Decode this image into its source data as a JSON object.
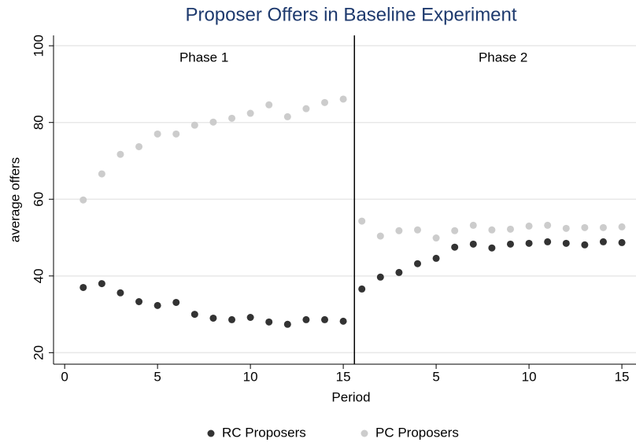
{
  "chart_data": {
    "type": "scatter",
    "title": "Proposer Offers in Baseline Experiment",
    "x_label": "Period",
    "y_label": "average offers",
    "annotations": [
      "Phase 1",
      "Phase 2"
    ],
    "divider": 15.6,
    "x": [
      1,
      2,
      3,
      4,
      5,
      6,
      7,
      8,
      9,
      10,
      11,
      12,
      13,
      14,
      15,
      16,
      17,
      18,
      19,
      20,
      21,
      22,
      23,
      24,
      25,
      26,
      27,
      28,
      29,
      30
    ],
    "series": [
      {
        "name": "RC Proposers",
        "color": "#333333",
        "values": [
          37.0,
          38.0,
          35.6,
          33.3,
          32.3,
          33.1,
          30.0,
          29.0,
          28.6,
          29.2,
          28.0,
          27.4,
          28.6,
          28.6,
          28.2,
          36.6,
          39.7,
          40.9,
          43.2,
          44.6,
          47.5,
          48.3,
          47.3,
          48.3,
          48.5,
          48.9,
          48.5,
          48.1,
          48.9,
          48.7
        ]
      },
      {
        "name": "PC Proposers",
        "color": "#cccccc",
        "values": [
          59.8,
          66.6,
          71.7,
          73.7,
          77.0,
          77.0,
          79.3,
          80.1,
          81.1,
          82.4,
          84.6,
          81.5,
          83.6,
          85.2,
          86.1,
          54.3,
          50.4,
          51.8,
          52.0,
          49.9,
          51.8,
          53.2,
          52.0,
          52.2,
          53.0,
          53.2,
          52.4,
          52.6,
          52.6,
          52.8
        ]
      }
    ],
    "xlim": [
      -0.6,
      30.76
    ],
    "ylim": [
      17,
      102.7
    ],
    "xticks": [
      0,
      5,
      10,
      15,
      {
        "value": 20,
        "label": "5"
      },
      {
        "value": 25,
        "label": "10"
      },
      {
        "value": 30,
        "label": "15"
      }
    ],
    "yticks": [
      20,
      40,
      60,
      80,
      100
    ],
    "grid": true,
    "legend": "bottom"
  }
}
